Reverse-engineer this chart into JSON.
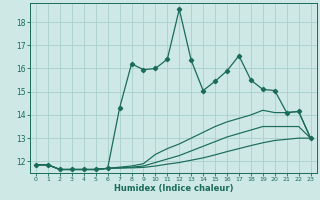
{
  "xlabel": "Humidex (Indice chaleur)",
  "background_color": "#cde8e5",
  "grid_color": "#aacfcc",
  "line_color": "#1a6b5a",
  "xlim": [
    -0.5,
    23.5
  ],
  "ylim": [
    11.5,
    18.8
  ],
  "yticks": [
    12,
    13,
    14,
    15,
    16,
    17,
    18
  ],
  "xticks": [
    0,
    1,
    2,
    3,
    4,
    5,
    6,
    7,
    8,
    9,
    10,
    11,
    12,
    13,
    14,
    15,
    16,
    17,
    18,
    19,
    20,
    21,
    22,
    23
  ],
  "series": [
    {
      "x": [
        0,
        1,
        2,
        3,
        4,
        5,
        6,
        7,
        8,
        9,
        10,
        11,
        12,
        13,
        14,
        15,
        16,
        17,
        18,
        19,
        20,
        21,
        22,
        23
      ],
      "y": [
        11.85,
        11.85,
        11.65,
        11.65,
        11.65,
        11.65,
        11.7,
        14.3,
        16.2,
        15.95,
        16.0,
        16.4,
        18.55,
        16.35,
        15.05,
        15.45,
        15.9,
        16.55,
        15.5,
        15.1,
        15.05,
        14.1,
        14.15,
        13.0
      ],
      "marker": true
    },
    {
      "x": [
        0,
        1,
        2,
        3,
        4,
        5,
        6,
        7,
        8,
        9,
        10,
        11,
        12,
        13,
        14,
        15,
        16,
        17,
        18,
        19,
        20,
        21,
        22,
        23
      ],
      "y": [
        11.85,
        11.85,
        11.65,
        11.65,
        11.65,
        11.65,
        11.7,
        11.75,
        11.8,
        11.9,
        12.3,
        12.55,
        12.75,
        13.0,
        13.25,
        13.5,
        13.7,
        13.85,
        14.0,
        14.2,
        14.1,
        14.1,
        14.15,
        13.0
      ],
      "marker": false
    },
    {
      "x": [
        0,
        1,
        2,
        3,
        4,
        5,
        6,
        7,
        8,
        9,
        10,
        11,
        12,
        13,
        14,
        15,
        16,
        17,
        18,
        19,
        20,
        21,
        22,
        23
      ],
      "y": [
        11.85,
        11.85,
        11.65,
        11.65,
        11.65,
        11.65,
        11.7,
        11.72,
        11.75,
        11.8,
        11.95,
        12.1,
        12.25,
        12.45,
        12.65,
        12.85,
        13.05,
        13.2,
        13.35,
        13.5,
        13.5,
        13.5,
        13.5,
        13.0
      ],
      "marker": false
    },
    {
      "x": [
        0,
        1,
        2,
        3,
        4,
        5,
        6,
        7,
        8,
        9,
        10,
        11,
        12,
        13,
        14,
        15,
        16,
        17,
        18,
        19,
        20,
        21,
        22,
        23
      ],
      "y": [
        11.85,
        11.85,
        11.65,
        11.65,
        11.65,
        11.65,
        11.7,
        11.71,
        11.72,
        11.74,
        11.8,
        11.88,
        11.95,
        12.05,
        12.15,
        12.28,
        12.42,
        12.55,
        12.68,
        12.8,
        12.9,
        12.95,
        13.0,
        13.0
      ],
      "marker": false
    }
  ]
}
